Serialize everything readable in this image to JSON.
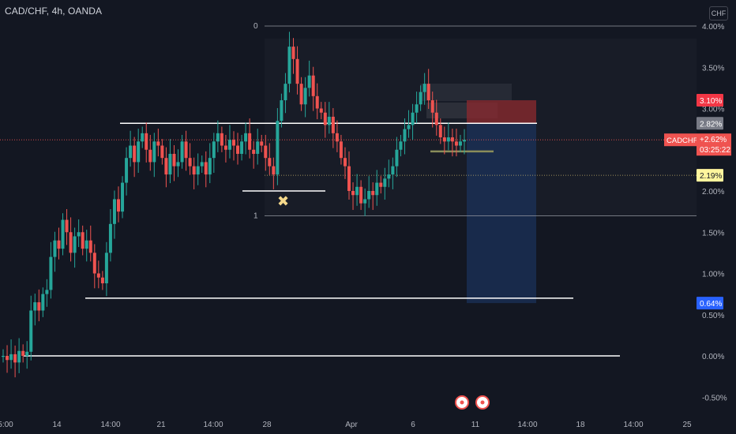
{
  "header": {
    "title": "CAD/CHF, 4h, OANDA",
    "currency_button": "CHF"
  },
  "colors": {
    "background": "#131722",
    "bull": "#26a69a",
    "bear": "#ef5350",
    "text": "#b2b5be",
    "line": "#ffffff",
    "stop_zone": "#8e2a2f",
    "target_zone": "#1e3a6e"
  },
  "chart_data": {
    "type": "candlestick",
    "y_unit": "%",
    "y_ticks": [
      "4.00%",
      "3.50%",
      "3.00%",
      "2.50%",
      "2.00%",
      "1.50%",
      "1.00%",
      "0.50%",
      "0.00%",
      "-0.50%"
    ],
    "x_ticks": [
      "5:00",
      "14",
      "14:00",
      "21",
      "14:00",
      "28",
      "Apr",
      "6",
      "11",
      "14:00",
      "18",
      "14:00",
      "25"
    ],
    "price_labels": [
      {
        "text": "3.10%",
        "value": 3.1,
        "color": "#f23645"
      },
      {
        "text": "2.82%",
        "value": 2.82,
        "color": "#787b86"
      },
      {
        "text": "2.19%",
        "value": 2.19,
        "color": "#fff59d"
      },
      {
        "text": "0.64%",
        "value": 0.64,
        "color": "#2962ff"
      }
    ],
    "symbol_label": {
      "symbol": "CADCHF",
      "change": "+2.62%",
      "countdown": "03:25:22",
      "value": 2.62
    },
    "fib_labels": {
      "top": "0",
      "bottom": "1"
    },
    "marker": "✖",
    "series_close": [
      0.0,
      -0.05,
      0.02,
      -0.08,
      0.06,
      0.0,
      0.05,
      0.55,
      0.65,
      0.55,
      0.75,
      0.8,
      1.2,
      1.4,
      1.3,
      1.65,
      1.5,
      1.25,
      1.45,
      1.5,
      1.3,
      1.4,
      1.25,
      1.0,
      0.95,
      0.88,
      1.25,
      1.6,
      1.9,
      1.75,
      2.1,
      2.4,
      2.55,
      2.35,
      2.6,
      2.7,
      2.5,
      2.35,
      2.6,
      2.55,
      2.4,
      2.2,
      2.45,
      2.3,
      2.35,
      2.6,
      2.4,
      2.3,
      2.2,
      2.3,
      2.35,
      2.2,
      2.4,
      2.6,
      2.7,
      2.55,
      2.5,
      2.62,
      2.55,
      2.45,
      2.6,
      2.7,
      2.5,
      2.45,
      2.6,
      2.55,
      2.4,
      2.3,
      2.2,
      2.85,
      3.1,
      3.3,
      3.75,
      3.6,
      3.3,
      3.05,
      3.25,
      3.4,
      3.15,
      3.0,
      2.95,
      2.8,
      2.9,
      2.7,
      2.6,
      2.4,
      2.3,
      2.0,
      1.95,
      2.05,
      1.85,
      1.9,
      2.0,
      1.95,
      2.1,
      2.05,
      2.15,
      2.2,
      2.3,
      2.5,
      2.6,
      2.75,
      2.8,
      2.95,
      3.05,
      3.2,
      3.3,
      3.1,
      2.95,
      2.8,
      2.65,
      2.6,
      2.65,
      2.6,
      2.55,
      2.6,
      2.62
    ]
  }
}
